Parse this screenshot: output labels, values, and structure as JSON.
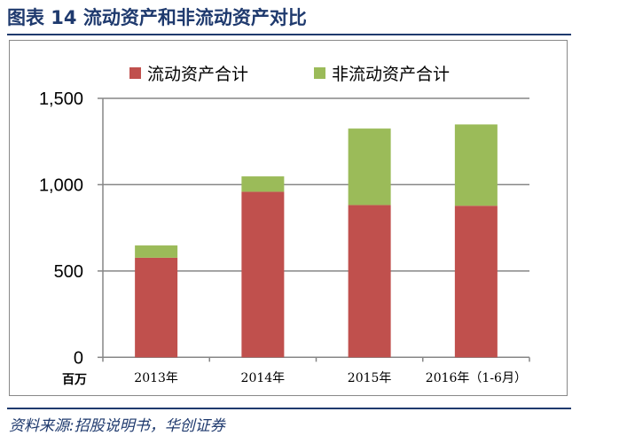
{
  "title": "图表 14 流动资产和非流动资产对比",
  "source": "资料来源:招股说明书，华创证券",
  "chart_data": {
    "type": "bar",
    "stacked": true,
    "categories": [
      "2013年",
      "2014年",
      "2015年",
      "2016年（1-6月）"
    ],
    "series": [
      {
        "name": "流动资产合计",
        "color": "#c0504d",
        "values": [
          577,
          959,
          882,
          878
        ]
      },
      {
        "name": "非流动资产合计",
        "color": "#9bbb59",
        "values": [
          71,
          89,
          443,
          471
        ]
      }
    ],
    "ylabel": "百万",
    "ylim": [
      0,
      1500
    ],
    "yticks": [
      "0",
      "500",
      "1,000",
      "1,500"
    ],
    "grid": true,
    "legend": "top"
  }
}
